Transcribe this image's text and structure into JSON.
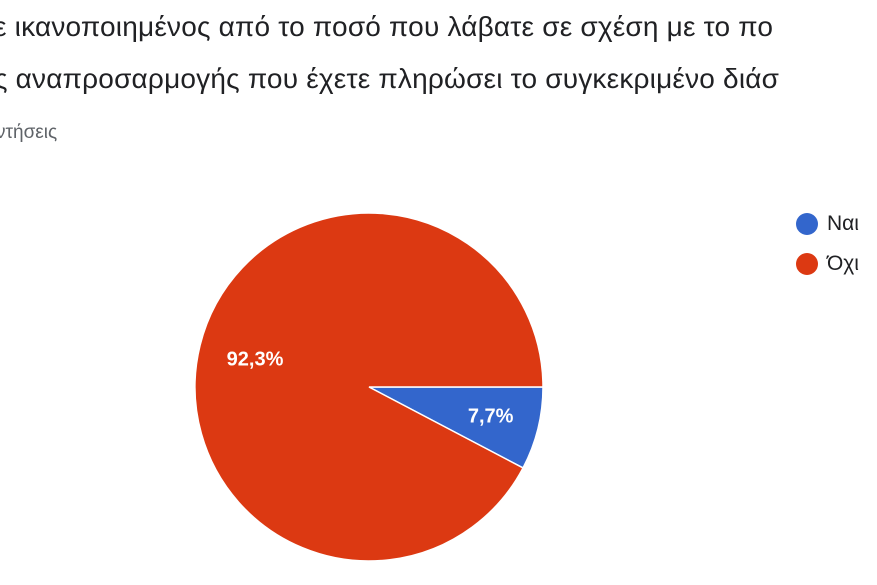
{
  "header": {
    "title_line_1": "ε ικανοποιημένος από το ποσό που λάβατε σε σχέση με το πο",
    "title_line_2": "ς αναπροσαρμογής που έχετε πληρώσει το συγκεκριμένο διάσ",
    "subtitle": "ντήσεις"
  },
  "chart_data": {
    "type": "pie",
    "title": "ε ικανοποιημένος από το ποσό που λάβατε σε σχέση με το πο ς αναπροσαρμογής που έχετε πληρώσει το συγκεκριμένο διάσ",
    "subtitle": "ντήσεις",
    "categories": [
      "Ναι",
      "Όχι"
    ],
    "values": [
      7.7,
      92.3
    ],
    "data_labels": [
      "7,7%",
      "92,3%"
    ],
    "colors": [
      "#3366cc",
      "#dc3912"
    ],
    "legend_position": "right"
  },
  "legend": {
    "items": [
      {
        "label": "Ναι",
        "color": "#3366cc"
      },
      {
        "label": "Όχι",
        "color": "#dc3912"
      }
    ]
  }
}
